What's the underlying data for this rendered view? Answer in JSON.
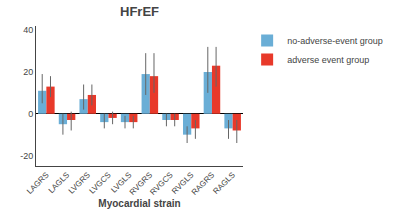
{
  "chart_data": {
    "type": "bar",
    "title": "HFrEF",
    "xlabel": "Myocardial strain",
    "categories": [
      "LAGRS",
      "LAGLS",
      "LVGRS",
      "LVGCS",
      "LVGLS",
      "RVGRS",
      "RVGCS",
      "RVGLS",
      "RAGRS",
      "RAGLS"
    ],
    "series": [
      {
        "name": "no-adverse-event group",
        "color": "#6aaed6",
        "values": [
          11,
          -5,
          7,
          -4,
          -4,
          19,
          -3,
          -10,
          20,
          -7
        ],
        "errors_up": [
          8,
          5,
          7,
          4,
          3,
          10,
          3,
          4,
          12,
          4
        ],
        "errors_down": [
          6,
          5,
          5,
          3,
          3,
          10,
          3,
          4,
          10,
          5
        ]
      },
      {
        "name": "adverse event group",
        "color": "#e8392a",
        "values": [
          13,
          -3,
          9,
          -2,
          -4,
          18,
          -3,
          -7,
          23,
          -8
        ],
        "errors_up": [
          5,
          4,
          5,
          3,
          3,
          11,
          3,
          4,
          9,
          5
        ],
        "errors_down": [
          5,
          5,
          5,
          3,
          3,
          8,
          3,
          5,
          10,
          6
        ]
      }
    ],
    "ylim": [
      -25,
      42
    ],
    "yticks": [
      -20,
      0,
      20,
      40
    ],
    "grid": false,
    "legend": "right"
  }
}
